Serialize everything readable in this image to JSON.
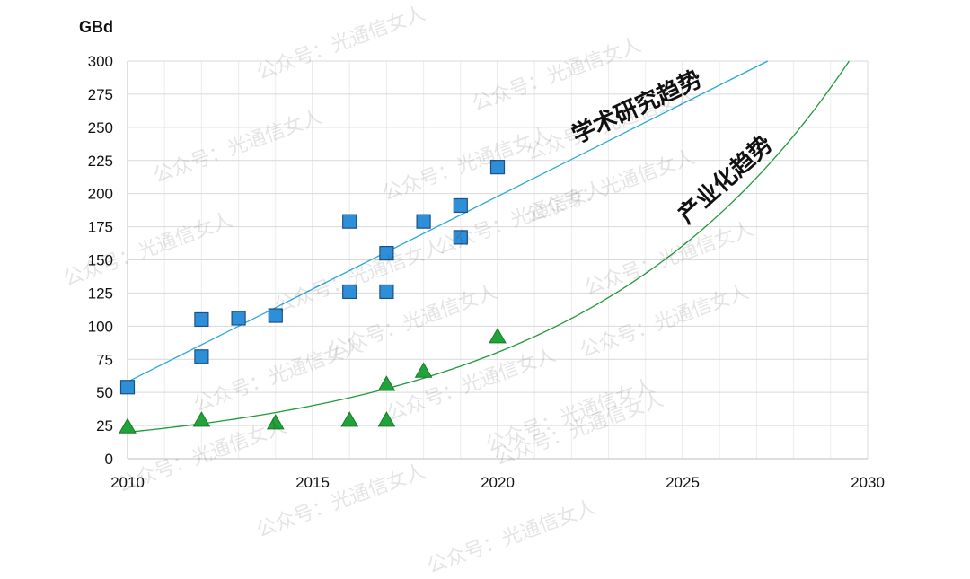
{
  "watermark": "公众号：光通信女人",
  "chart_data": {
    "type": "scatter",
    "ylabel": "GBd",
    "xlim": [
      2010,
      2030
    ],
    "ylim": [
      0,
      300
    ],
    "xticks": [
      2010,
      2015,
      2020,
      2025,
      2030
    ],
    "yticks": [
      0,
      25,
      50,
      75,
      100,
      125,
      150,
      175,
      200,
      225,
      250,
      275,
      300
    ],
    "grid": true,
    "series": [
      {
        "marker": "square",
        "color": "#2e8fd9",
        "points": [
          [
            2010,
            54
          ],
          [
            2012,
            77
          ],
          [
            2012,
            105
          ],
          [
            2013,
            106
          ],
          [
            2014,
            108
          ],
          [
            2016,
            126
          ],
          [
            2016,
            179
          ],
          [
            2017,
            126
          ],
          [
            2017,
            155
          ],
          [
            2018,
            179
          ],
          [
            2019,
            167
          ],
          [
            2019,
            191
          ],
          [
            2020,
            220
          ]
        ]
      },
      {
        "marker": "triangle",
        "color": "#21a33a",
        "points": [
          [
            2010,
            24
          ],
          [
            2012,
            29
          ],
          [
            2014,
            27
          ],
          [
            2016,
            29
          ],
          [
            2017,
            29
          ],
          [
            2017,
            56
          ],
          [
            2018,
            66
          ],
          [
            2020,
            92
          ]
        ]
      }
    ],
    "trendlines": [
      {
        "label": "学术研究趋势",
        "kind": "linear",
        "color": "#2aa8d8",
        "from": [
          2010,
          58
        ],
        "to": [
          2027.3,
          300
        ]
      },
      {
        "label": "产业化趋势",
        "kind": "exponential",
        "color": "#1e9a3a",
        "from": [
          2010,
          20
        ],
        "to": [
          2029.5,
          300
        ]
      }
    ]
  }
}
